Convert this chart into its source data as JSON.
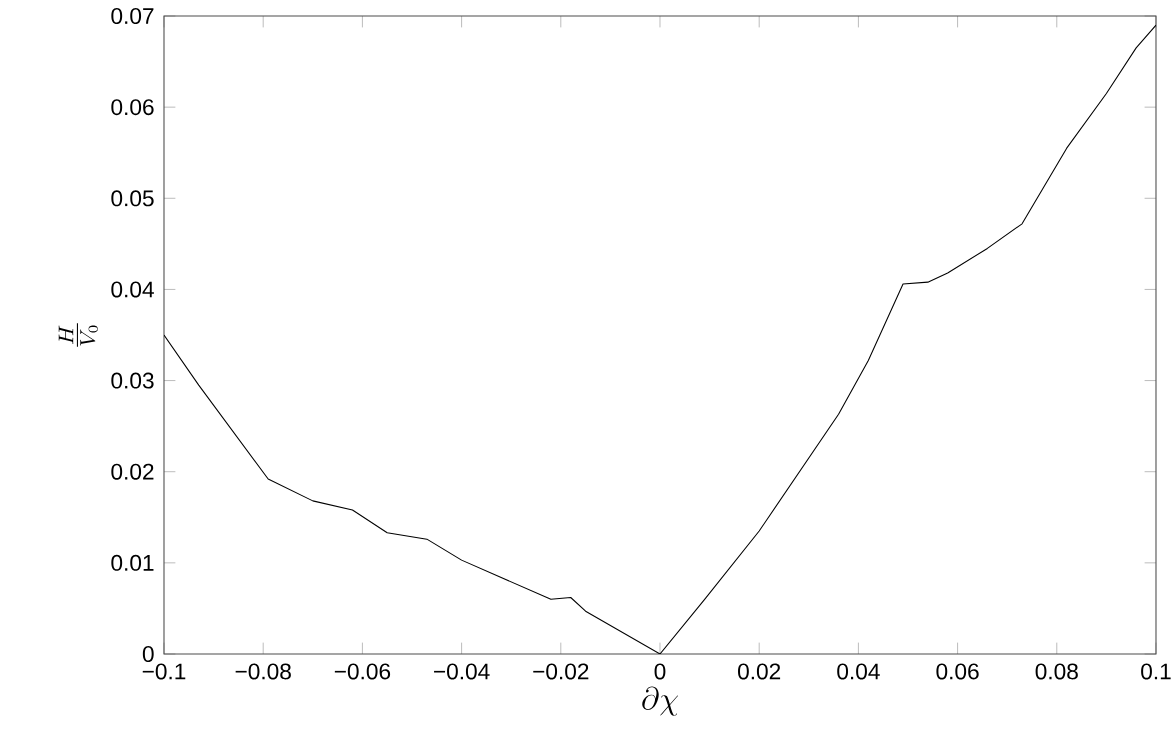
{
  "chart_data": {
    "type": "line",
    "xlabel": "\\partial\\chi",
    "ylabel": "\\frac{H}{V_0}",
    "x": [
      -0.1,
      -0.093,
      -0.079,
      -0.07,
      -0.062,
      -0.055,
      -0.047,
      -0.04,
      -0.022,
      -0.018,
      -0.015,
      0,
      0.009,
      0.02,
      0.036,
      0.042,
      0.049,
      0.054,
      0.058,
      0.066,
      0.073,
      0.082,
      0.09,
      0.096,
      0.1
    ],
    "series": [
      {
        "color": "#000000",
        "values": [
          0.035,
          0.0295,
          0.0192,
          0.0168,
          0.0158,
          0.0133,
          0.0126,
          0.0103,
          0.006,
          0.0062,
          0.0047,
          0,
          0.006,
          0.0135,
          0.0263,
          0.0322,
          0.0406,
          0.0408,
          0.0418,
          0.0445,
          0.0472,
          0.0555,
          0.0615,
          0.0665,
          0.069
        ]
      }
    ],
    "xlim": [
      -0.1,
      0.1
    ],
    "ylim": [
      0,
      0.07
    ],
    "xticks": [
      {
        "value": -0.1,
        "label": "−0.1"
      },
      {
        "value": -0.08,
        "label": "−0.08"
      },
      {
        "value": -0.06,
        "label": "−0.06"
      },
      {
        "value": -0.04,
        "label": "−0.04"
      },
      {
        "value": -0.02,
        "label": "−0.02"
      },
      0,
      0.02,
      0.04,
      0.06,
      0.08,
      0.1
    ],
    "yticks": [
      0,
      0.01,
      0.02,
      0.03,
      0.04,
      0.05,
      0.06,
      0.07
    ],
    "grid": false,
    "marker": "none",
    "line_style": "solid"
  }
}
